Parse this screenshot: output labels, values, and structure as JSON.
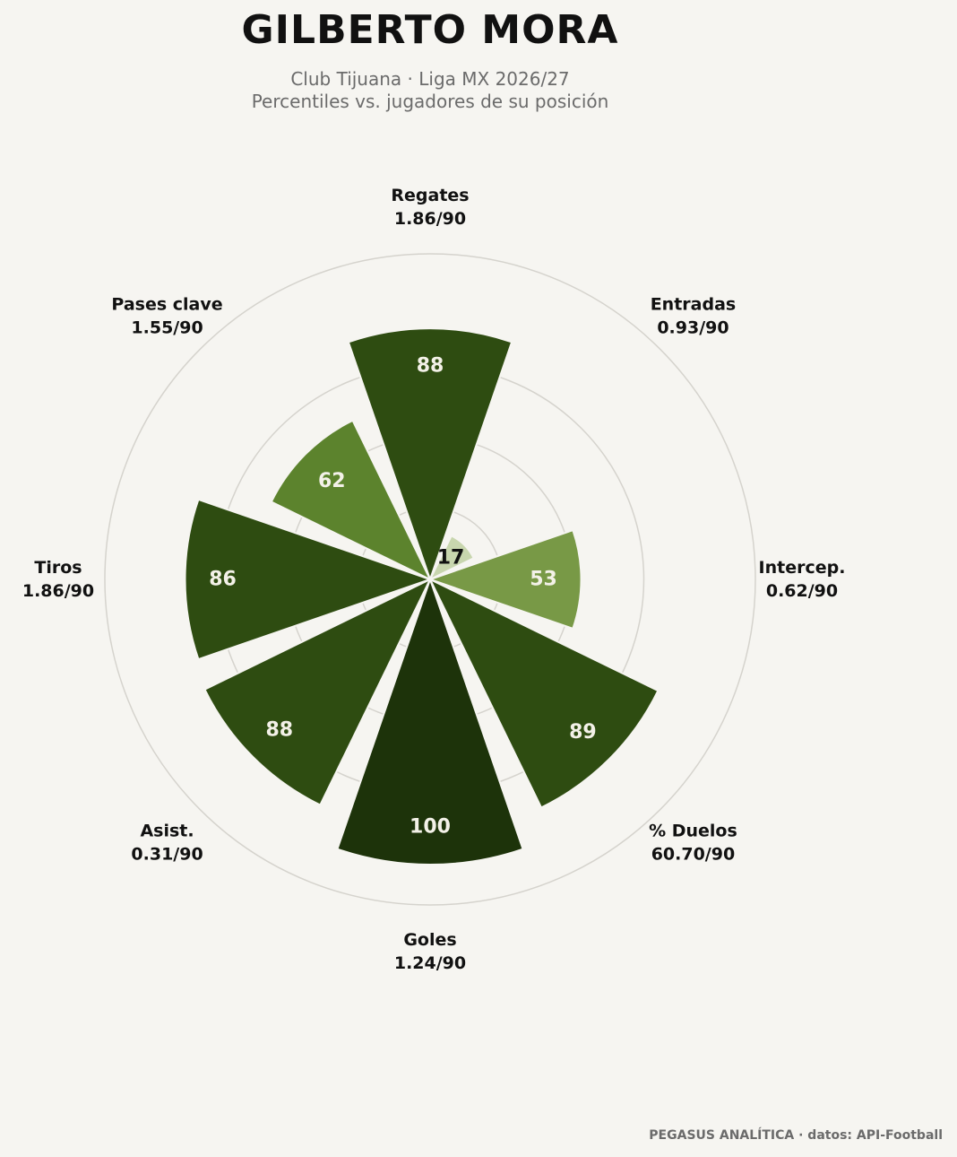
{
  "header": {
    "title": "GILBERTO MORA",
    "subtitle_line1": "Club Tijuana · Liga MX 2026/27",
    "subtitle_line2": "Percentiles vs. jugadores de su posición"
  },
  "footer": {
    "credit": "PEGASUS ANALÍTICA · datos: API-Football"
  },
  "chart_data": {
    "type": "polar-bar",
    "title": "GILBERTO MORA",
    "categories": [
      "Regates",
      "Entradas",
      "Intercep.",
      "% Duelos",
      "Goles",
      "Asist.",
      "Tiros",
      "Pases clave"
    ],
    "per90_labels": [
      "1.86/90",
      "0.93/90",
      "0.62/90",
      "60.70/90",
      "1.24/90",
      "0.31/90",
      "1.86/90",
      "1.55/90"
    ],
    "percentiles": [
      88,
      17,
      53,
      89,
      100,
      88,
      86,
      62
    ],
    "rlim": [
      0,
      100
    ],
    "grid": true,
    "colors": {
      "very_high": "#1d330a",
      "high": "#2e4c11",
      "mid_high": "#5c832d",
      "mid": "#789946",
      "low": "#c8d6ae",
      "grid": "#d5d3cd",
      "background": "#f6f5f1"
    }
  }
}
